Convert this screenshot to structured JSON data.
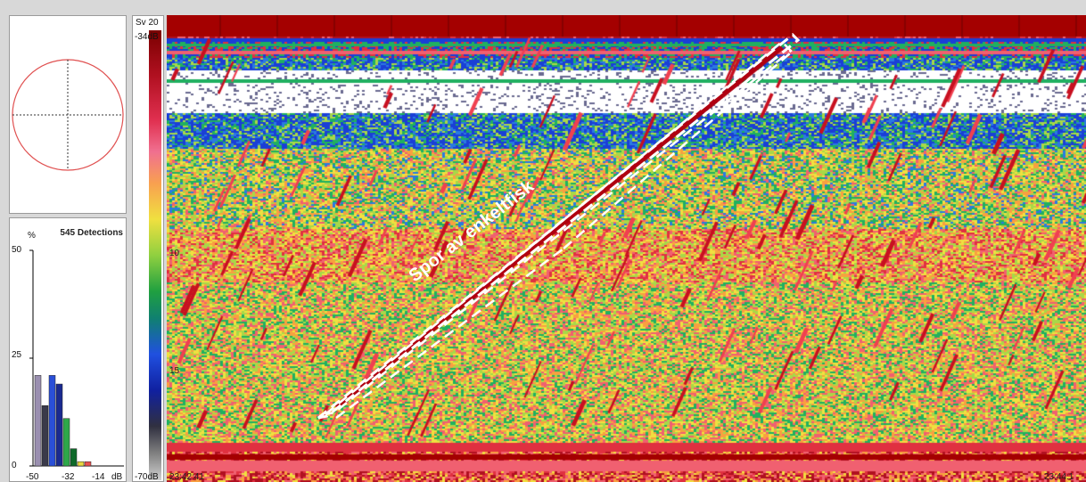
{
  "compass": {
    "circle_color": "#e05050",
    "crosshair_color": "#333333"
  },
  "histogram": {
    "title": "545 Detections",
    "y_unit": "%",
    "y_ticks": [
      "50",
      "25",
      "0"
    ],
    "x_ticks": [
      "-50",
      "-32",
      "-14"
    ],
    "x_unit": "dB",
    "bars": [
      {
        "value": 21,
        "color": "#9a8fb0"
      },
      {
        "value": 14,
        "color": "#3a3a4a"
      },
      {
        "value": 21,
        "color": "#2a4fd8"
      },
      {
        "value": 19,
        "color": "#1a2a90"
      },
      {
        "value": 11,
        "color": "#2ea84a"
      },
      {
        "value": 4,
        "color": "#0e6a2a"
      },
      {
        "value": 1,
        "color": "#e8d840"
      },
      {
        "value": 1,
        "color": "#e85050"
      }
    ]
  },
  "colorbar": {
    "label": "Sv 20",
    "top_value": "-34dB",
    "bottom_value": "-70dB"
  },
  "echogram": {
    "depth_labels": [
      "10",
      "15"
    ],
    "time_left": "23:42:41",
    "time_right": "23:44:1",
    "annotation": "Spor av enkeltfisk"
  }
}
